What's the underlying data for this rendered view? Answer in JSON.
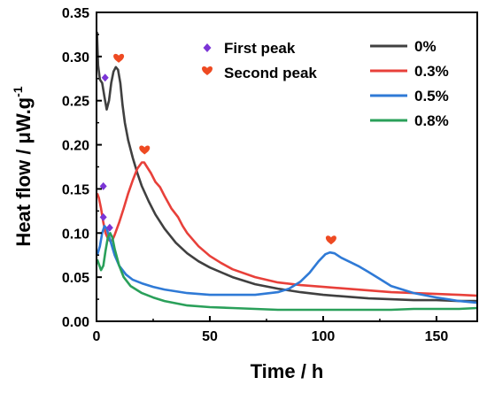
{
  "chart_data": {
    "type": "line",
    "xlabel": "Time / h",
    "ylabel_main": "Heat flow / μW.g",
    "ylabel_sup": "-1",
    "xlim": [
      0,
      168
    ],
    "ylim": [
      0,
      0.35
    ],
    "xticks": [
      0,
      50,
      100,
      150
    ],
    "xtick_labels": [
      "0",
      "50",
      "100",
      "150"
    ],
    "yticks": [
      0.0,
      0.05,
      0.1,
      0.15,
      0.2,
      0.25,
      0.3,
      0.35
    ],
    "ytick_labels": [
      "0.00",
      "0.05",
      "0.10",
      "0.15",
      "0.20",
      "0.25",
      "0.30",
      "0.35"
    ],
    "grid": false,
    "series_legend_position": "top-right",
    "series": [
      {
        "name": "0%",
        "color": "#404040",
        "points": [
          [
            0.2,
            0.328
          ],
          [
            0.7,
            0.29
          ],
          [
            1.5,
            0.274
          ],
          [
            2.5,
            0.27
          ],
          [
            3.5,
            0.254
          ],
          [
            4.5,
            0.24
          ],
          [
            5.5,
            0.25
          ],
          [
            6.5,
            0.27
          ],
          [
            7.5,
            0.283
          ],
          [
            8.5,
            0.288
          ],
          [
            9.5,
            0.285
          ],
          [
            10.5,
            0.27
          ],
          [
            11.5,
            0.245
          ],
          [
            12.5,
            0.225
          ],
          [
            14,
            0.205
          ],
          [
            16,
            0.185
          ],
          [
            18,
            0.168
          ],
          [
            20,
            0.153
          ],
          [
            23,
            0.136
          ],
          [
            26,
            0.121
          ],
          [
            30,
            0.105
          ],
          [
            35,
            0.089
          ],
          [
            40,
            0.077
          ],
          [
            45,
            0.068
          ],
          [
            50,
            0.061
          ],
          [
            60,
            0.05
          ],
          [
            70,
            0.042
          ],
          [
            80,
            0.037
          ],
          [
            90,
            0.033
          ],
          [
            100,
            0.03
          ],
          [
            110,
            0.028
          ],
          [
            120,
            0.026
          ],
          [
            130,
            0.025
          ],
          [
            140,
            0.024
          ],
          [
            150,
            0.024
          ],
          [
            160,
            0.023
          ],
          [
            168,
            0.023
          ]
        ]
      },
      {
        "name": "0.3%",
        "color": "#e8403a",
        "points": [
          [
            0.3,
            0.145
          ],
          [
            1,
            0.14
          ],
          [
            2,
            0.128
          ],
          [
            3,
            0.112
          ],
          [
            4,
            0.1
          ],
          [
            5,
            0.094
          ],
          [
            6,
            0.091
          ],
          [
            7,
            0.092
          ],
          [
            8,
            0.098
          ],
          [
            10,
            0.112
          ],
          [
            12,
            0.128
          ],
          [
            14,
            0.145
          ],
          [
            16,
            0.16
          ],
          [
            18,
            0.173
          ],
          [
            20,
            0.18
          ],
          [
            21,
            0.18
          ],
          [
            22,
            0.176
          ],
          [
            24,
            0.168
          ],
          [
            26,
            0.158
          ],
          [
            28,
            0.152
          ],
          [
            30,
            0.142
          ],
          [
            33,
            0.128
          ],
          [
            36,
            0.118
          ],
          [
            38,
            0.108
          ],
          [
            40,
            0.1
          ],
          [
            45,
            0.085
          ],
          [
            50,
            0.074
          ],
          [
            55,
            0.066
          ],
          [
            60,
            0.059
          ],
          [
            70,
            0.05
          ],
          [
            80,
            0.044
          ],
          [
            90,
            0.041
          ],
          [
            100,
            0.039
          ],
          [
            110,
            0.037
          ],
          [
            120,
            0.035
          ],
          [
            130,
            0.033
          ],
          [
            140,
            0.032
          ],
          [
            150,
            0.031
          ],
          [
            160,
            0.03
          ],
          [
            168,
            0.029
          ]
        ]
      },
      {
        "name": "0.5%",
        "color": "#2f7ad6",
        "points": [
          [
            0.3,
            0.075
          ],
          [
            1.5,
            0.085
          ],
          [
            2.5,
            0.1
          ],
          [
            3.5,
            0.108
          ],
          [
            4.5,
            0.105
          ],
          [
            6,
            0.092
          ],
          [
            8,
            0.075
          ],
          [
            10,
            0.063
          ],
          [
            13,
            0.053
          ],
          [
            16,
            0.047
          ],
          [
            20,
            0.043
          ],
          [
            25,
            0.039
          ],
          [
            30,
            0.036
          ],
          [
            40,
            0.032
          ],
          [
            50,
            0.03
          ],
          [
            60,
            0.03
          ],
          [
            70,
            0.03
          ],
          [
            80,
            0.033
          ],
          [
            85,
            0.037
          ],
          [
            90,
            0.045
          ],
          [
            94,
            0.055
          ],
          [
            98,
            0.068
          ],
          [
            101,
            0.076
          ],
          [
            103,
            0.078
          ],
          [
            105,
            0.077
          ],
          [
            108,
            0.072
          ],
          [
            112,
            0.067
          ],
          [
            116,
            0.062
          ],
          [
            120,
            0.056
          ],
          [
            125,
            0.048
          ],
          [
            130,
            0.04
          ],
          [
            140,
            0.032
          ],
          [
            150,
            0.027
          ],
          [
            160,
            0.023
          ],
          [
            168,
            0.021
          ]
        ]
      },
      {
        "name": "0.8%",
        "color": "#2aa05a",
        "points": [
          [
            0.3,
            0.07
          ],
          [
            1,
            0.065
          ],
          [
            2,
            0.058
          ],
          [
            3,
            0.063
          ],
          [
            4,
            0.08
          ],
          [
            5,
            0.095
          ],
          [
            6,
            0.1
          ],
          [
            7,
            0.095
          ],
          [
            8,
            0.082
          ],
          [
            10,
            0.063
          ],
          [
            12,
            0.05
          ],
          [
            15,
            0.04
          ],
          [
            20,
            0.032
          ],
          [
            25,
            0.027
          ],
          [
            30,
            0.023
          ],
          [
            40,
            0.018
          ],
          [
            50,
            0.016
          ],
          [
            60,
            0.015
          ],
          [
            70,
            0.014
          ],
          [
            80,
            0.013
          ],
          [
            90,
            0.013
          ],
          [
            100,
            0.013
          ],
          [
            110,
            0.013
          ],
          [
            120,
            0.013
          ],
          [
            130,
            0.013
          ],
          [
            140,
            0.014
          ],
          [
            150,
            0.014
          ],
          [
            160,
            0.014
          ],
          [
            168,
            0.015
          ]
        ]
      }
    ],
    "marker_legend": [
      {
        "label": "First peak",
        "marker": "diamond",
        "color": "#7b35d6"
      },
      {
        "label": "Second peak",
        "marker": "heart",
        "color": "#ee4a22"
      }
    ],
    "first_peak_markers": [
      [
        3.8,
        0.276
      ],
      [
        3.0,
        0.153
      ],
      [
        3.0,
        0.118
      ],
      [
        5.8,
        0.106
      ]
    ],
    "second_peak_markers": [
      [
        9.8,
        0.298
      ],
      [
        21.2,
        0.194
      ],
      [
        103.5,
        0.092
      ]
    ]
  }
}
